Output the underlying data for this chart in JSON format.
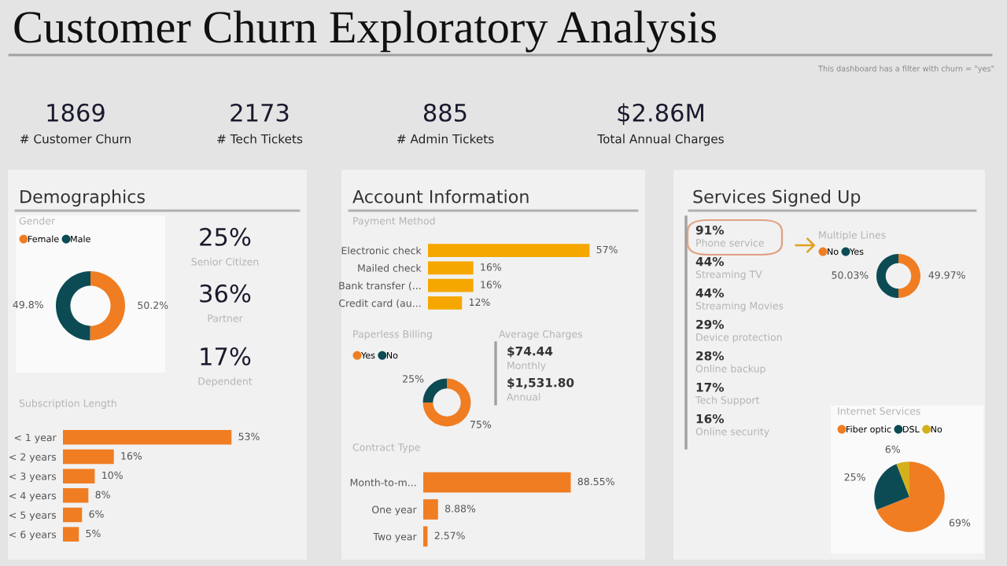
{
  "chart_data": [
    {
      "type": "other",
      "title": "Customer Churn Exploratory Analysis",
      "annotations": [
        "This dashboard has a filter with churn = \"yes\"",
        "1869",
        "# Customer Churn",
        "2173",
        "# Tech Tickets",
        "885",
        "# Admin Tickets",
        "$2.86M",
        "Total Annual Charges"
      ]
    },
    {
      "type": "other",
      "title": "Demographics",
      "annotations": [
        "25%",
        "Senior Citizen",
        "36%",
        "Partner",
        "17%",
        "Dependent"
      ]
    },
    {
      "type": "donut",
      "title": "Gender",
      "categories": [
        "Female",
        "Male"
      ],
      "values": [
        50.2,
        49.8
      ],
      "colors": [
        "#f07d22",
        "#0c4b54"
      ],
      "value_labels": [
        "50.2%",
        "49.8%"
      ],
      "legend": "top left"
    },
    {
      "type": "bar",
      "orientation": "horizontal",
      "title": "Subscription Length",
      "categories": [
        "< 1 year",
        "< 2 years",
        "< 3 years",
        "< 4 years",
        "< 5 years",
        "< 6 years"
      ],
      "values": [
        53,
        16,
        10,
        8,
        6,
        5
      ],
      "color": "#f07d22",
      "value_labels": [
        "53%",
        "16%",
        "10%",
        "8%",
        "6%",
        "5%"
      ],
      "tick_labels": "y"
    },
    {
      "type": "other",
      "title": "Account Information",
      "annotations": [
        "Average Charges",
        "$74.44",
        "Monthly",
        "$1,531.80",
        "Annual"
      ]
    },
    {
      "type": "bar",
      "orientation": "horizontal",
      "title": "Payment Method",
      "categories": [
        "Electronic check",
        "Mailed check",
        "Bank transfer (...",
        "Credit card (au..."
      ],
      "values": [
        57,
        16,
        16,
        12
      ],
      "color": "#f5a700",
      "value_labels": [
        "57%",
        "16%",
        "16%",
        "12%"
      ],
      "tick_labels": "y"
    },
    {
      "type": "donut",
      "title": "Paperless Billing",
      "categories": [
        "Yes",
        "No"
      ],
      "values": [
        75,
        25
      ],
      "colors": [
        "#f07d22",
        "#0c4b54"
      ],
      "value_labels": [
        "75%",
        "25%"
      ],
      "legend": "top left"
    },
    {
      "type": "bar",
      "orientation": "horizontal",
      "title": "Contract Type",
      "categories": [
        "Month-to-m...",
        "One year",
        "Two year"
      ],
      "values": [
        88.55,
        8.88,
        2.57
      ],
      "color": "#f07d22",
      "value_labels": [
        "88.55%",
        "8.88%",
        "2.57%"
      ],
      "tick_labels": "y"
    },
    {
      "type": "other",
      "title": "Services Signed Up",
      "annotations": [
        "91%",
        "Phone service",
        "44%",
        "Streaming TV",
        "44%",
        "Streaming Movies",
        "29%",
        "Device protection",
        "28%",
        "Online backup",
        "17%",
        "Tech Support",
        "16%",
        "Online security"
      ]
    },
    {
      "type": "donut",
      "title": "Multiple Lines",
      "categories": [
        "No",
        "Yes"
      ],
      "values": [
        49.97,
        50.03
      ],
      "colors": [
        "#f07d22",
        "#0c4b54"
      ],
      "value_labels": [
        "49.97%",
        "50.03%"
      ],
      "legend": "top left"
    },
    {
      "type": "pie",
      "title": "Internet Services",
      "categories": [
        "Fiber optic",
        "DSL",
        "No"
      ],
      "values": [
        69,
        25,
        6
      ],
      "colors": [
        "#f07d22",
        "#0c4b54",
        "#d4b01a"
      ],
      "value_labels": [
        "69%",
        "25%",
        "6%"
      ],
      "legend": "top left"
    }
  ]
}
